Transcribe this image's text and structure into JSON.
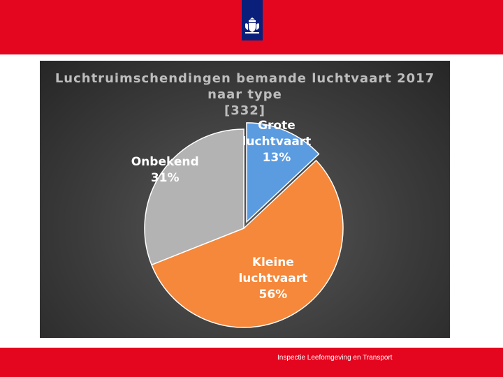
{
  "header": {
    "logo": "rijksoverheid-coat-of-arms-icon",
    "bar_color": "#e4051f",
    "logo_color": "#0a1f7a"
  },
  "chart_data": {
    "type": "pie",
    "title_lines": [
      "Luchtruimschendingen bemande luchtvaart 2017",
      "naar type",
      "[332]"
    ],
    "slices": [
      {
        "label": [
          "Grote",
          "luchtvaart"
        ],
        "value": 13,
        "value_label": "13%",
        "color": "#5b9be0"
      },
      {
        "label": [
          "Kleine",
          "luchtvaart"
        ],
        "value": 56,
        "value_label": "56%",
        "color": "#f5883a"
      },
      {
        "label": [
          "Onbekend"
        ],
        "value": 31,
        "value_label": "31%",
        "color": "#b3b3b3"
      }
    ]
  },
  "footer": {
    "text": "Inspectie Leefomgeving en Transport"
  }
}
